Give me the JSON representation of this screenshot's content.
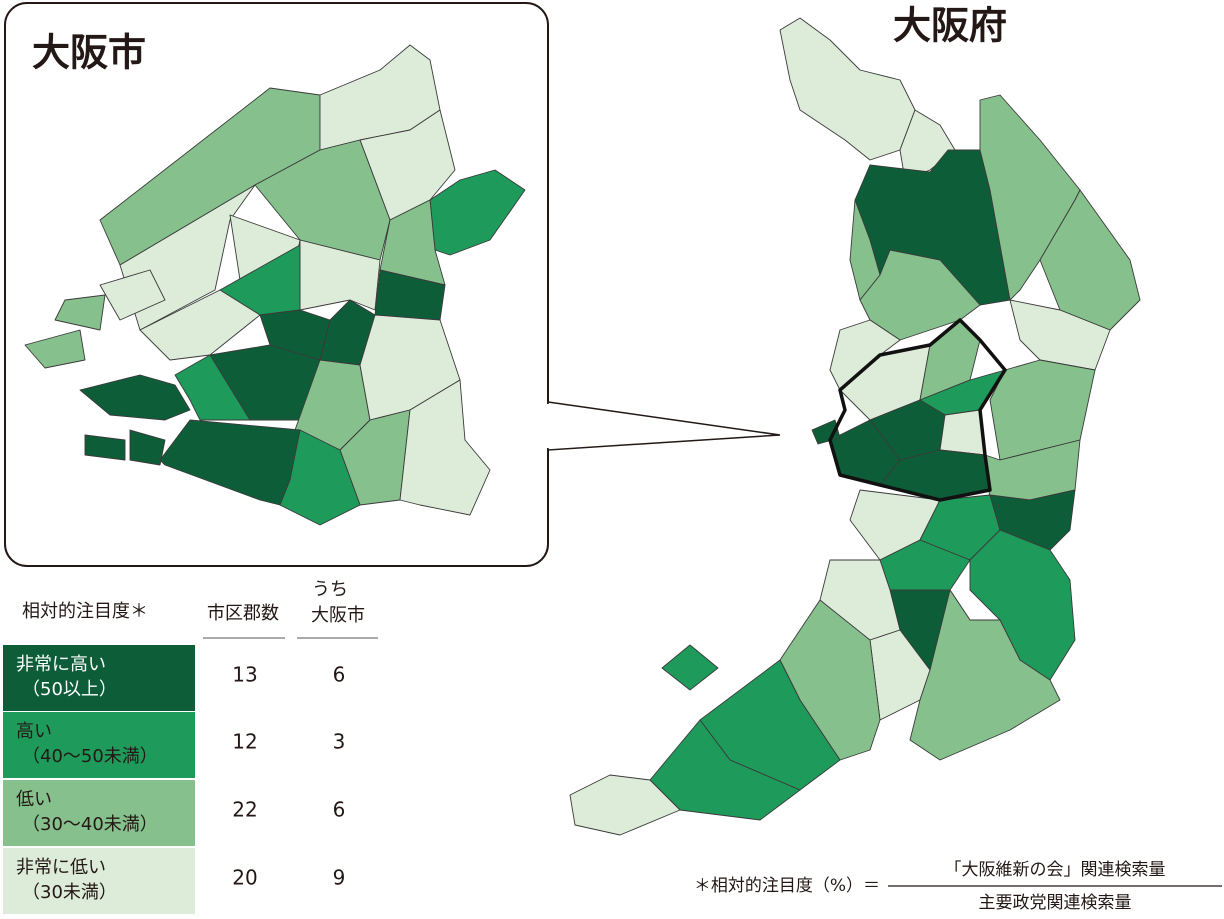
{
  "titles": {
    "city": "大阪市",
    "prefecture": "大阪府"
  },
  "table": {
    "headers": {
      "level": "相対的注目度＊",
      "count": "市区郡数",
      "osaka": [
        "うち",
        "大阪市"
      ]
    },
    "rows": [
      {
        "label": "非常に高い",
        "range": "（50以上）",
        "count": 13,
        "osaka": 6,
        "color": "#0d5e38"
      },
      {
        "label": "高い",
        "range": "（40〜50未満）",
        "count": 12,
        "osaka": 3,
        "color": "#1e9b5b"
      },
      {
        "label": "低い",
        "range": "（30〜40未満）",
        "count": 22,
        "osaka": 6,
        "color": "#86c08c"
      },
      {
        "label": "非常に低い",
        "range": "（30未満）",
        "count": 20,
        "osaka": 9,
        "color": "#dcecd9"
      }
    ]
  },
  "footnote": {
    "lhs": "＊相対的注目度（%）＝",
    "numerator": "「大阪維新の会」関連検索量",
    "denominator": "主要政党関連検索量"
  }
}
